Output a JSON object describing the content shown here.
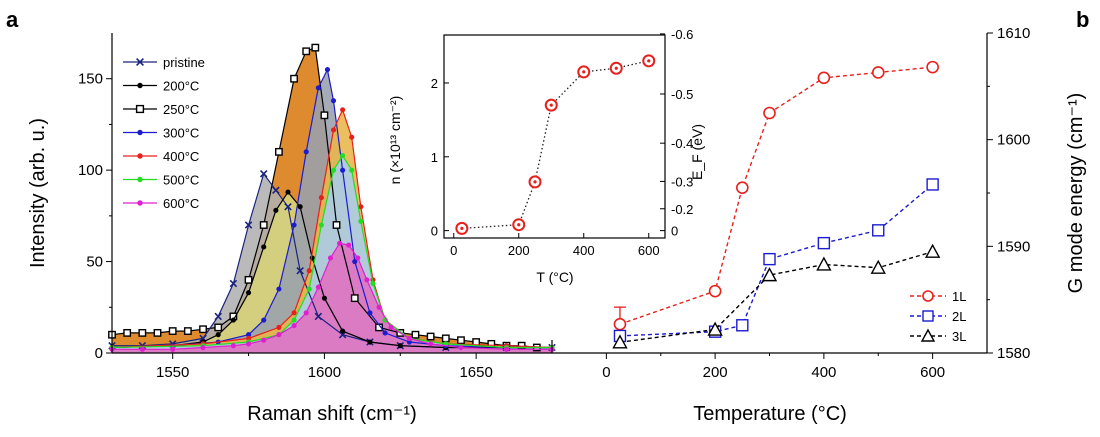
{
  "panels": {
    "a": "a",
    "b": "b"
  },
  "chart_data": [
    {
      "type": "area",
      "panel": "a",
      "xlabel": "Raman shift (cm⁻¹)",
      "ylabel": "Intensity (arb. u.)",
      "xlim": [
        1530,
        1675
      ],
      "ylim": [
        0,
        175
      ],
      "xticks": [
        1550,
        1600,
        1650
      ],
      "yticks": [
        0,
        50,
        100,
        150
      ],
      "legend_position": "top-left",
      "series": [
        {
          "name": "pristine",
          "color": "#1a237e",
          "fill": "#b0b0b0",
          "marker": "x",
          "x": [
            1530,
            1540,
            1550,
            1560,
            1565,
            1570,
            1575,
            1580,
            1584,
            1588,
            1592,
            1598,
            1606,
            1615,
            1625,
            1640,
            1660,
            1675
          ],
          "y": [
            4,
            4,
            5,
            8,
            20,
            38,
            70,
            98,
            89,
            80,
            45,
            20,
            10,
            6,
            4,
            3,
            3,
            3
          ]
        },
        {
          "name": "200°C",
          "color": "#000000",
          "fill": "#d8d47a",
          "marker": "dot",
          "x": [
            1530,
            1550,
            1560,
            1565,
            1570,
            1575,
            1580,
            1584,
            1588,
            1592,
            1596,
            1600,
            1606,
            1615,
            1625,
            1640,
            1660,
            1675
          ],
          "y": [
            3,
            4,
            6,
            10,
            18,
            33,
            58,
            78,
            88,
            80,
            52,
            30,
            12,
            6,
            4,
            3,
            3,
            3
          ]
        },
        {
          "name": "250°C",
          "color": "#000000",
          "fill": "#d97a12",
          "marker": "square",
          "x": [
            1530,
            1535,
            1540,
            1545,
            1550,
            1555,
            1560,
            1565,
            1570,
            1575,
            1580,
            1585,
            1590,
            1594,
            1597,
            1600,
            1604,
            1610,
            1618,
            1625,
            1630,
            1635,
            1640,
            1645,
            1650,
            1655,
            1660,
            1665,
            1670
          ],
          "y": [
            10,
            11,
            11,
            11,
            12,
            12,
            13,
            14,
            20,
            40,
            70,
            110,
            150,
            165,
            167,
            130,
            70,
            30,
            14,
            11,
            10,
            9,
            8,
            7,
            6,
            5,
            4,
            4,
            3
          ]
        },
        {
          "name": "300°C",
          "color": "#1c1ccf",
          "fill": "#9aa0ad",
          "marker": "dot",
          "x": [
            1530,
            1550,
            1565,
            1575,
            1580,
            1585,
            1590,
            1594,
            1598,
            1601,
            1603,
            1606,
            1610,
            1615,
            1620,
            1628,
            1640,
            1660,
            1675
          ],
          "y": [
            3,
            4,
            6,
            10,
            18,
            35,
            70,
            110,
            145,
            155,
            138,
            100,
            50,
            22,
            11,
            6,
            4,
            3,
            3
          ]
        },
        {
          "name": "400°C",
          "color": "#e8201c",
          "fill": "#e8b64a",
          "marker": "dot",
          "x": [
            1530,
            1560,
            1575,
            1585,
            1590,
            1595,
            1599,
            1603,
            1606,
            1609,
            1612,
            1616,
            1620,
            1628,
            1640,
            1660,
            1675
          ],
          "y": [
            3,
            5,
            8,
            14,
            22,
            45,
            85,
            122,
            133,
            118,
            80,
            40,
            18,
            8,
            5,
            4,
            3
          ]
        },
        {
          "name": "500°C",
          "color": "#22dd22",
          "fill": "#a8cdec",
          "marker": "dot",
          "x": [
            1530,
            1560,
            1575,
            1585,
            1590,
            1595,
            1599,
            1603,
            1606,
            1609,
            1612,
            1616,
            1620,
            1628,
            1640,
            1660,
            1675
          ],
          "y": [
            3,
            4,
            6,
            10,
            18,
            35,
            70,
            100,
            108,
            100,
            72,
            38,
            18,
            8,
            5,
            3,
            3
          ]
        },
        {
          "name": "600°C",
          "color": "#e020d0",
          "fill": "#e070c0",
          "marker": "dot",
          "x": [
            1530,
            1540,
            1550,
            1560,
            1570,
            1575,
            1580,
            1585,
            1590,
            1594,
            1598,
            1602,
            1605,
            1608,
            1611,
            1614,
            1618,
            1622,
            1628,
            1635,
            1645,
            1660,
            1675
          ],
          "y": [
            2,
            2,
            2,
            3,
            4,
            5,
            7,
            10,
            15,
            22,
            36,
            52,
            60,
            59,
            52,
            40,
            25,
            14,
            8,
            5,
            3,
            2,
            2
          ]
        }
      ]
    },
    {
      "type": "scatter",
      "panel": "b",
      "xlabel": "Temperature (°C)",
      "ylabel": "G mode energy (cm⁻¹)",
      "xlim": [
        -100,
        700
      ],
      "ylim": [
        1580,
        1610
      ],
      "xticks": [
        0,
        200,
        400,
        600
      ],
      "yticks": [
        1580,
        1590,
        1600,
        1610
      ],
      "legend_position": "bottom-right",
      "series": [
        {
          "name": "1L",
          "color": "#e8201c",
          "marker": "circle",
          "x": [
            25,
            200,
            250,
            300,
            400,
            500,
            600
          ],
          "y": [
            1582.7,
            1585.8,
            1595.5,
            1602.5,
            1605.8,
            1606.3,
            1606.8
          ],
          "error_first": 1.6
        },
        {
          "name": "2L",
          "color": "#1c1ccf",
          "marker": "square",
          "x": [
            25,
            200,
            250,
            300,
            400,
            500,
            600
          ],
          "y": [
            1581.6,
            1582.0,
            1582.6,
            1588.8,
            1590.3,
            1591.5,
            1595.8
          ]
        },
        {
          "name": "3L",
          "color": "#000000",
          "marker": "triangle",
          "x": [
            25,
            200,
            300,
            400,
            500,
            600
          ],
          "y": [
            1581.0,
            1582.2,
            1587.3,
            1588.3,
            1588.0,
            1589.5
          ]
        }
      ]
    },
    {
      "type": "scatter",
      "panel": "inset",
      "xlabel": "T (°C)",
      "ylabel": "n (×10¹³ cm⁻²)",
      "y2label": "E_F (eV)",
      "xlim": [
        -30,
        650
      ],
      "ylim": [
        -0.1,
        2.65
      ],
      "xticks": [
        0,
        200,
        400,
        600
      ],
      "yticks": [
        0,
        1,
        2
      ],
      "y2ticks": [
        "0",
        "-0.2",
        "-0.3",
        "-0.4",
        "-0.5",
        "-0.6"
      ],
      "y2tick_n": [
        0,
        0.2962,
        0.6664,
        1.1846,
        1.851,
        2.665
      ],
      "series": [
        {
          "name": "",
          "color": "#e8201c",
          "marker": "circle-dot",
          "x": [
            25,
            200,
            250,
            300,
            400,
            500,
            600
          ],
          "y": [
            0.03,
            0.08,
            0.66,
            1.7,
            2.15,
            2.2,
            2.3
          ]
        }
      ]
    }
  ]
}
